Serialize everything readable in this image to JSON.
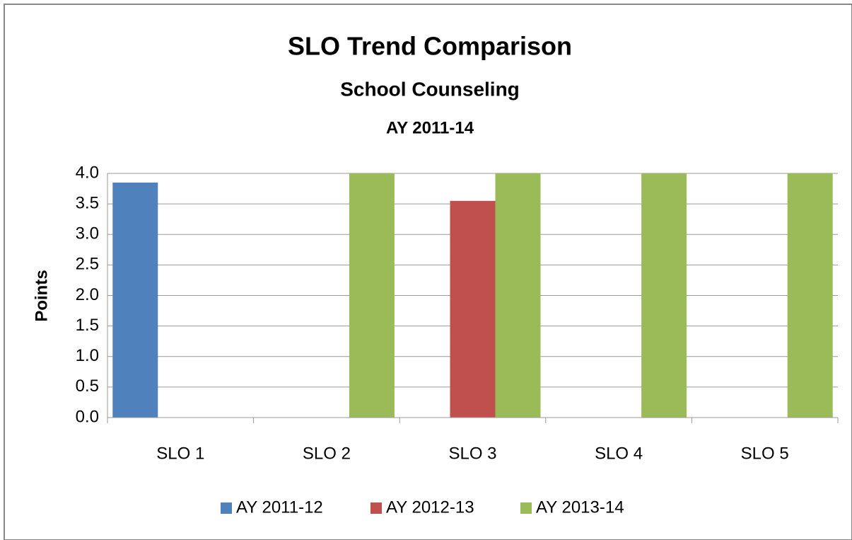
{
  "chart_data": {
    "type": "bar",
    "title": "SLO Trend Comparison",
    "subtitles": [
      "School Counseling",
      "AY 2011-14"
    ],
    "y_label": "Points",
    "categories": [
      "SLO 1",
      "SLO 2",
      "SLO 3",
      "SLO 4",
      "SLO 5"
    ],
    "series": [
      {
        "name": "AY 2011-12",
        "color": "#4f81bd",
        "values": [
          3.85,
          null,
          null,
          null,
          null
        ]
      },
      {
        "name": "AY 2012-13",
        "color": "#c0504d",
        "values": [
          null,
          null,
          3.55,
          null,
          null
        ]
      },
      {
        "name": "AY 2013-14",
        "color": "#9bbb59",
        "values": [
          null,
          4.0,
          4.0,
          4.0,
          4.0
        ]
      }
    ],
    "ylim": [
      0,
      4
    ],
    "yticks": [
      {
        "value": 0,
        "label": "0.0"
      },
      {
        "value": 0.5,
        "label": "0.5"
      },
      {
        "value": 1,
        "label": "1.0"
      },
      {
        "value": 1.5,
        "label": "1.5"
      },
      {
        "value": 2,
        "label": "2.0"
      },
      {
        "value": 2.5,
        "label": "2.5"
      },
      {
        "value": 3,
        "label": "3.0"
      },
      {
        "value": 3.5,
        "label": "3.5"
      },
      {
        "value": 4,
        "label": "4.0"
      }
    ],
    "grid": true,
    "legend": "bottom"
  }
}
